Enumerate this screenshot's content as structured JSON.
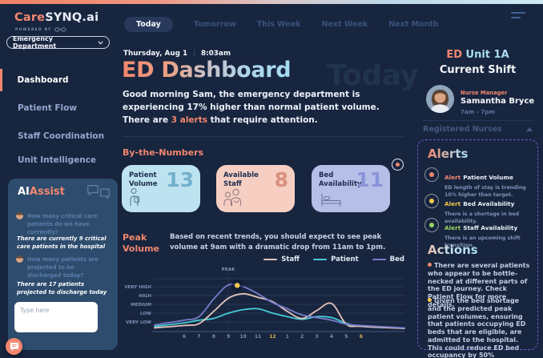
{
  "colors": {
    "background": "#18253F",
    "accent_coral": "#F0876F",
    "accent_light_blue": "#A8DCF0",
    "panel_slate": "#2E4C6D",
    "alert_yellow": "#F2C94C",
    "alert_green": "#9BD363",
    "dashed_border_purple": "#6A58CF"
  },
  "brand": {
    "care": "Care",
    "rest": "SYNQ.ai",
    "powered_by": "POWERED BY",
    "department": "Emergency Department"
  },
  "topnav": {
    "tabs": [
      {
        "label": "Today",
        "active": true
      },
      {
        "label": "Tomorrow",
        "active": false
      },
      {
        "label": "This Week",
        "active": false
      },
      {
        "label": "Next Week",
        "active": false
      },
      {
        "label": "Next Month",
        "active": false
      }
    ]
  },
  "sidebar": {
    "items": [
      {
        "label": "Dashboard",
        "active": true
      },
      {
        "label": "Patient Flow",
        "active": false
      },
      {
        "label": "Staff Coordination",
        "active": false
      },
      {
        "label": "Unit Intelligence",
        "active": false
      }
    ]
  },
  "aiassist": {
    "title_ai": "AI",
    "title_assist": "Assist",
    "messages": [
      {
        "question": "How many critical care patients do we have currently?",
        "answer": "There are currently 9 critical care patients in the hospital"
      },
      {
        "question": "How many patients are projected to be discharged today?",
        "answer": "There are 17  patients projected to discharge today"
      }
    ],
    "input_placeholder": "Type here"
  },
  "header": {
    "date": "Thursday, Aug 1",
    "time": "8:03am",
    "title": "ED Dashboard",
    "watermark": "Today",
    "greeting_part1": "Good morning Sam, the emergency department is experiencing 17% higher than normal patient volume. There are ",
    "greeting_alert": "3 alerts",
    "greeting_part2": " that require attention."
  },
  "numbers": {
    "heading": "By-the-Numbers",
    "cards": [
      {
        "label": "Patient Volume",
        "value": "13",
        "icon": "patient-icon",
        "bg": "#BCE3EF",
        "value_color": "#74B1CC"
      },
      {
        "label": "Available Staff",
        "value": "8",
        "icon": "staff-icon",
        "bg": "#F6CFC2",
        "value_color": "#D8907E"
      },
      {
        "label": "Bed Availability",
        "value": "11",
        "icon": "bed-icon",
        "bg": "#B6BFE8",
        "value_color": "#8A94D8"
      }
    ]
  },
  "peak": {
    "heading": "Peak Volume",
    "description": "Based on recent trends, you should expect to see peak volume at 9am with a dramatic drop from 11am to 1pm.",
    "legend": [
      {
        "label": "Staff",
        "color": "#E5C3BA"
      },
      {
        "label": "Patient",
        "color": "#45CBD6"
      },
      {
        "label": "Bed",
        "color": "#777DC9"
      }
    ]
  },
  "chart_data": {
    "type": "line",
    "categories": [
      "6am",
      "7am",
      "8am",
      "9am",
      "10am",
      "11am",
      "12pm",
      "1pm",
      "2pm",
      "3pm",
      "4pm",
      "5pm",
      "6pm"
    ],
    "x_labels": [
      "6",
      "7",
      "8",
      "9",
      "10",
      "11",
      "12",
      "1",
      "2",
      "3",
      "4",
      "5",
      "6"
    ],
    "x_highlight_indices": [
      6,
      12
    ],
    "y_level_labels": [
      "VERY HIGH",
      "HIGH",
      "MEDIUM",
      "LOW",
      "VERY LOW"
    ],
    "y_scale_note": "values on 0-5 scale where 1=VERY LOW and 5=VERY HIGH",
    "series": [
      {
        "name": "Staff",
        "color": "#E5C3BA",
        "values": [
          0.6,
          0.8,
          2.2,
          3.7,
          4.2,
          3.8,
          3.3,
          2.2,
          1.4,
          2.3,
          3.1,
          0.75,
          0.5
        ]
      },
      {
        "name": "Patient",
        "color": "#45CBD6",
        "values": [
          0.9,
          1.2,
          1.4,
          2.0,
          2.4,
          2.5,
          2.0,
          1.6,
          1.3,
          1.6,
          1.5,
          0.85,
          0.5
        ]
      },
      {
        "name": "Bed",
        "color": "#777DC9",
        "values": [
          1.2,
          1.6,
          3.6,
          5.2,
          5.0,
          4.2,
          3.2,
          2.5,
          1.8,
          1.5,
          1.2,
          0.75,
          0.6
        ]
      }
    ],
    "peak_annotation": {
      "label": "PEAK",
      "line_x_index": 3,
      "marker_x_index": 3.6,
      "marker_value": 5.15,
      "marker_color": "#F2C94C"
    },
    "grid": "horizontal",
    "legend_position": "top-right"
  },
  "shift": {
    "unit_prefix": "ED",
    "unit_name": "Unit 1A",
    "title": "Current Shift",
    "role": "Nurse Manager",
    "name": "Samantha Bryce",
    "hours": "7am - 7pm",
    "nurses_label": "Registered Nurses"
  },
  "alerts": {
    "title": "Alerts",
    "items": [
      {
        "prefix": "Alert",
        "label": "Patient Volume",
        "detail": "ED length of stay is trending 10% higher than target.",
        "color": "#F0876F"
      },
      {
        "prefix": "Alert",
        "label": "Bed Availability",
        "detail": "There is a shortage in bed availability.",
        "color": "#F2C94C"
      },
      {
        "prefix": "Alert",
        "label": "Staff Availability",
        "detail": "There is an upcoming shift transition.",
        "color": "#9BD363"
      }
    ]
  },
  "actions": {
    "title": "Actions",
    "items": [
      {
        "text": "There are several patients who appear to be bottle-necked at different parts of the ED journey. Check Patient Flow for more details.",
        "bullet_color": "#F0876F"
      },
      {
        "text": "Given the bed shortage and the predicted peak patient volumes, ensuring that patients occupying ED beds that are eligible, are admitted to the hospital. This could reduce ED bed occupancy by 50%",
        "bullet_color": "#F2C94C"
      }
    ]
  }
}
